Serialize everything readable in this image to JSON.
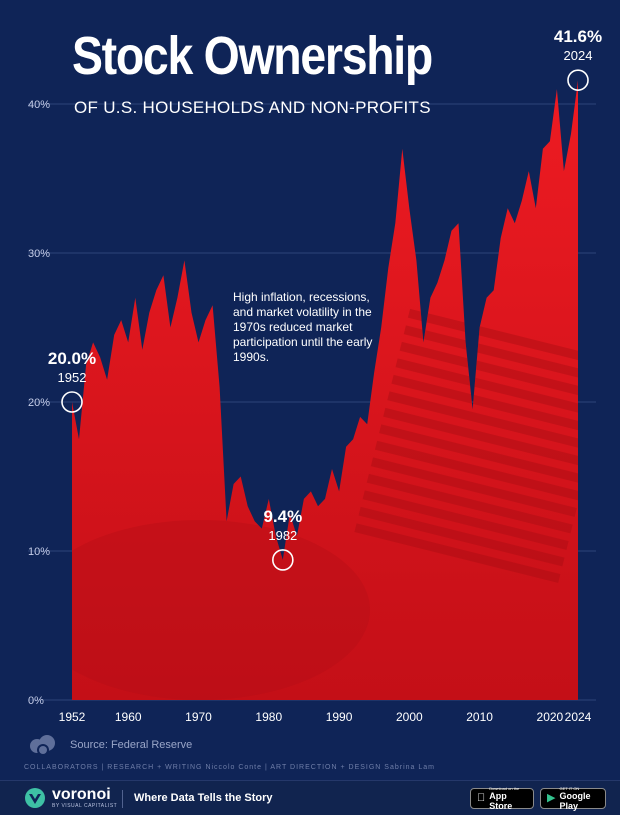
{
  "header": {
    "title": "Stock Ownership",
    "subtitle": "OF U.S. HOUSEHOLDS AND NON-PROFITS"
  },
  "chart_data": {
    "type": "area",
    "title": "Stock Ownership",
    "subtitle": "OF U.S. HOUSEHOLDS AND NON-PROFITS",
    "xlabel": "",
    "ylabel": "",
    "xlim": [
      1952,
      2024
    ],
    "ylim": [
      0,
      40
    ],
    "x_ticks": [
      1952,
      1960,
      1970,
      1980,
      1990,
      2000,
      2010,
      2020,
      2024
    ],
    "y_ticks": [
      0,
      10,
      20,
      30,
      40
    ],
    "y_tick_labels": [
      "0%",
      "10%",
      "20%",
      "30%",
      "40%"
    ],
    "grid": true,
    "legend": "none",
    "fill_color": "#e8141c",
    "series": [
      {
        "x": [
          1952,
          1953,
          1954,
          1955,
          1956,
          1957,
          1958,
          1959,
          1960,
          1961,
          1962,
          1963,
          1964,
          1965,
          1966,
          1967,
          1968,
          1969,
          1970,
          1971,
          1972,
          1973,
          1974,
          1975,
          1976,
          1977,
          1978,
          1979,
          1980,
          1981,
          1982,
          1983,
          1984,
          1985,
          1986,
          1987,
          1988,
          1989,
          1990,
          1991,
          1992,
          1993,
          1994,
          1995,
          1996,
          1997,
          1998,
          1999,
          2000,
          2001,
          2002,
          2003,
          2004,
          2005,
          2006,
          2007,
          2008,
          2009,
          2010,
          2011,
          2012,
          2013,
          2014,
          2015,
          2016,
          2017,
          2018,
          2019,
          2020,
          2021,
          2022,
          2023,
          2024
        ],
        "y": [
          20.0,
          17.5,
          22.5,
          24.0,
          23.0,
          21.5,
          24.5,
          25.5,
          24.0,
          27.0,
          23.5,
          26.0,
          27.5,
          28.5,
          25.0,
          27.0,
          29.5,
          26.0,
          24.0,
          25.5,
          26.5,
          21.0,
          12.0,
          14.5,
          15.0,
          13.0,
          12.0,
          11.5,
          13.5,
          11.0,
          9.4,
          12.5,
          11.0,
          13.5,
          14.0,
          13.0,
          13.5,
          15.5,
          14.0,
          17.0,
          17.5,
          19.0,
          18.5,
          22.0,
          25.0,
          29.0,
          32.0,
          37.0,
          33.0,
          29.5,
          24.0,
          27.0,
          28.0,
          29.5,
          31.5,
          32.0,
          24.0,
          19.5,
          25.0,
          27.0,
          27.5,
          31.0,
          33.0,
          32.0,
          33.5,
          35.5,
          33.0,
          37.0,
          37.5,
          41.0,
          35.5,
          38.0,
          41.6
        ]
      }
    ],
    "annotations": [
      {
        "value": "20.0%",
        "year": "1952",
        "x": 1952,
        "y": 20.0
      },
      {
        "value": "9.4%",
        "year": "1982",
        "x": 1982,
        "y": 9.4
      },
      {
        "value": "41.6%",
        "year": "2024",
        "x": 2024,
        "y": 41.6
      }
    ],
    "note": "High inflation, recessions, and market volatility in the 1970s reduced market participation until the early 1990s."
  },
  "footer": {
    "source": "Source: Federal Reserve",
    "collaborators": "COLLABORATORS  |  RESEARCH + WRITING Niccolo Conte  |  ART DIRECTION + DESIGN Sabrina Lam",
    "brand_name": "voronoi",
    "brand_sub": "BY VISUAL CAPITALIST",
    "tagline": "Where Data Tells the Story",
    "app_store_small": "Download on the",
    "app_store_big": "App Store",
    "google_play_small": "GET IT ON",
    "google_play_big": "Google Play",
    "brand_icon": "voronoi-logo-icon",
    "collaborators_icon": "clouds-logo-icon"
  }
}
